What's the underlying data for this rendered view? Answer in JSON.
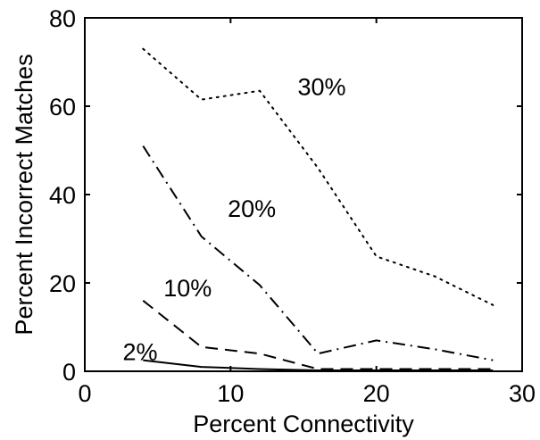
{
  "chart_data": {
    "type": "line",
    "xlabel": "Percent Connectivity",
    "ylabel": "Percent Incorrect Matches",
    "xlim": [
      0,
      30
    ],
    "ylim": [
      0,
      80
    ],
    "xticks": [
      0,
      10,
      20,
      30
    ],
    "yticks": [
      0,
      20,
      40,
      60,
      80
    ],
    "grid": false,
    "legend": "inline labels",
    "series": [
      {
        "name": "30%",
        "style": "dotted",
        "color": "#000000",
        "x": [
          4,
          8,
          12,
          16,
          20,
          24,
          28
        ],
        "y": [
          73,
          61.5,
          63.5,
          46,
          26,
          21.5,
          15
        ]
      },
      {
        "name": "20%",
        "style": "dashdot",
        "color": "#000000",
        "x": [
          4,
          8,
          12,
          16,
          20,
          24,
          28
        ],
        "y": [
          51,
          30.5,
          19.5,
          4,
          7,
          5,
          2.5
        ]
      },
      {
        "name": "10%",
        "style": "dashed",
        "color": "#000000",
        "x": [
          4,
          8,
          12,
          16,
          20,
          24,
          28
        ],
        "y": [
          16,
          5.5,
          4,
          0.5,
          0.5,
          0.5,
          0.5
        ]
      },
      {
        "name": "2%",
        "style": "solid",
        "color": "#000000",
        "x": [
          4,
          8,
          12,
          16,
          20,
          24,
          28
        ],
        "y": [
          2.5,
          1,
          0.5,
          0.2,
          0.2,
          0.2,
          0.2
        ]
      }
    ]
  }
}
